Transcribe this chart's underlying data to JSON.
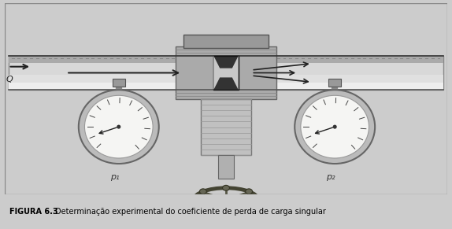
{
  "figure_number": "FIGURA 6.3",
  "caption": "Determinação experimental do coeficiente de perda de carga singular",
  "caption_bg_color": "#d8d4ce",
  "caption_text_color": "#000000",
  "figure_bold_part": "FIGURA 6.3",
  "outer_border_color": "#cccccc",
  "inner_border_color": "#888888",
  "image_bg_color": "#ffffff",
  "p1_label": "p₁",
  "p2_label": "p₂",
  "Q_label": "Q",
  "figsize": [
    5.74,
    2.91
  ],
  "dpi": 100
}
